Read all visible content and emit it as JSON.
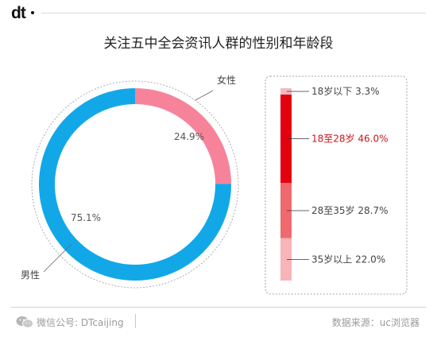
{
  "brand": {
    "logo_text": "dt"
  },
  "chart_data": [
    {
      "type": "pie",
      "variant": "donut",
      "title": "关注五中全会资讯人群的性别和年龄段",
      "slices": [
        {
          "label": "女性",
          "value": 24.9,
          "value_label": "24.9%",
          "color": "#f7839a"
        },
        {
          "label": "男性",
          "value": 75.1,
          "value_label": "75.1%",
          "color": "#12a8e8"
        }
      ]
    },
    {
      "type": "bar",
      "variant": "stacked-100",
      "categories": [
        "18岁以下",
        "18至28岁",
        "28至35岁",
        "35岁以上"
      ],
      "values": [
        3.3,
        46.0,
        28.7,
        22.0
      ],
      "value_labels": [
        "3.3%",
        "46.0%",
        "28.7%",
        "22.0%"
      ],
      "colors": [
        "#f5b9c0",
        "#e4000f",
        "#ef6a6e",
        "#f7b4b9"
      ],
      "highlight_color": "#c8161d",
      "highlight_index": 1
    }
  ],
  "footer": {
    "left": "微信公号: DTcaijing",
    "right": "数据来源：uc浏览器"
  }
}
